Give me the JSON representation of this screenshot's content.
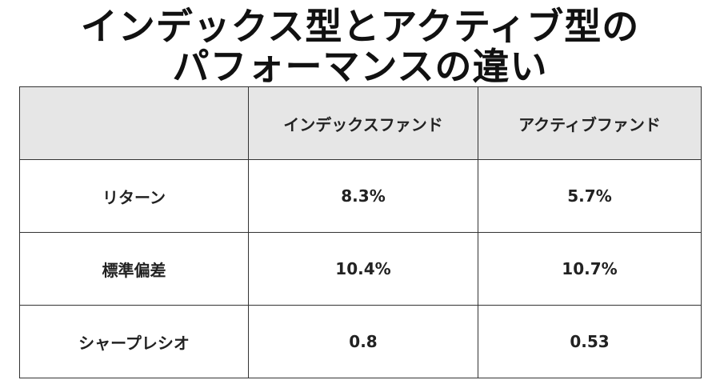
{
  "header": {
    "title_lines": [
      "インデックス型とアクティブ型の",
      "パフォーマンスの違い"
    ]
  },
  "table": {
    "columns": [
      "",
      "インデックスファンド",
      "アクティブファンド"
    ],
    "rows": [
      [
        "リターン",
        "8.3%",
        "5.7%"
      ],
      [
        "標準偏差",
        "10.4%",
        "10.7%"
      ],
      [
        "シャープレシオ",
        "0.8",
        "0.53"
      ]
    ]
  }
}
